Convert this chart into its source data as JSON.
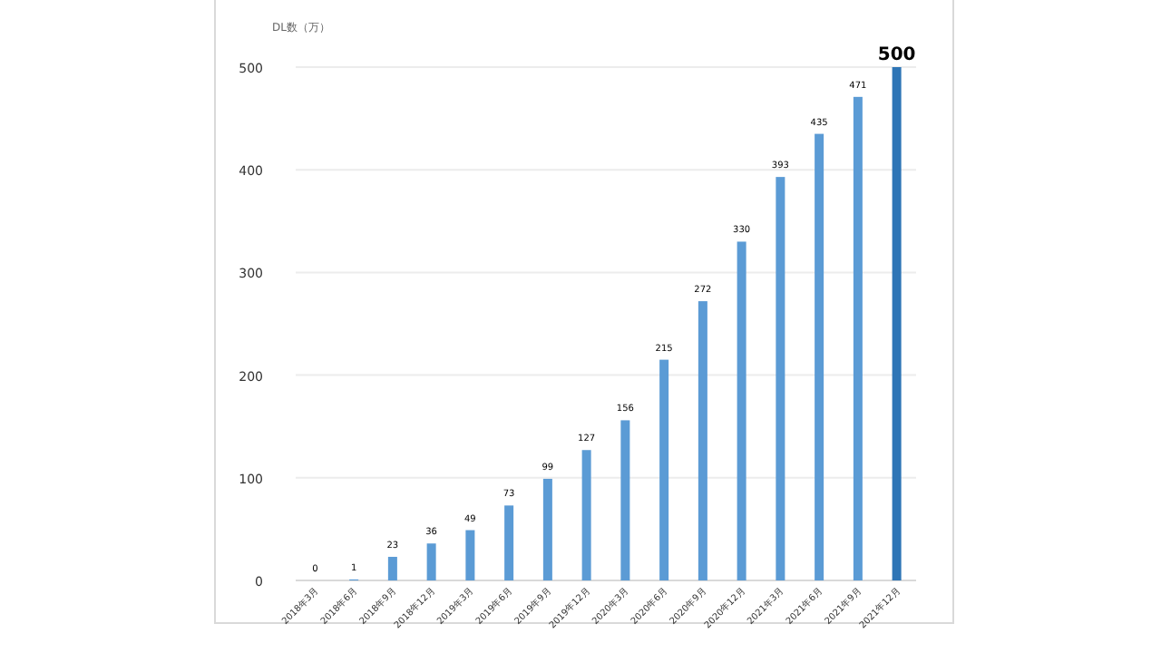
{
  "chart_data": {
    "type": "bar",
    "ylabel": "DL数（万）",
    "categories": [
      "2018年3月",
      "2018年6月",
      "2018年9月",
      "2018年12月",
      "2019年3月",
      "2019年6月",
      "2019年9月",
      "2019年12月",
      "2020年3月",
      "2020年6月",
      "2020年9月",
      "2020年12月",
      "2021年3月",
      "2021年6月",
      "2021年9月",
      "2021年12月"
    ],
    "values": [
      0,
      1,
      23,
      36,
      49,
      73,
      99,
      127,
      156,
      215,
      272,
      330,
      393,
      435,
      471,
      500
    ],
    "colors": [
      "#5b9bd5",
      "#5b9bd5",
      "#5b9bd5",
      "#5b9bd5",
      "#5b9bd5",
      "#5b9bd5",
      "#5b9bd5",
      "#5b9bd5",
      "#5b9bd5",
      "#5b9bd5",
      "#5b9bd5",
      "#5b9bd5",
      "#5b9bd5",
      "#5b9bd5",
      "#5b9bd5",
      "#2e75b6"
    ],
    "ylim": [
      0,
      500
    ],
    "yticks": [
      0,
      100,
      200,
      300,
      400,
      500
    ],
    "grid": "y",
    "data_labels": true
  }
}
